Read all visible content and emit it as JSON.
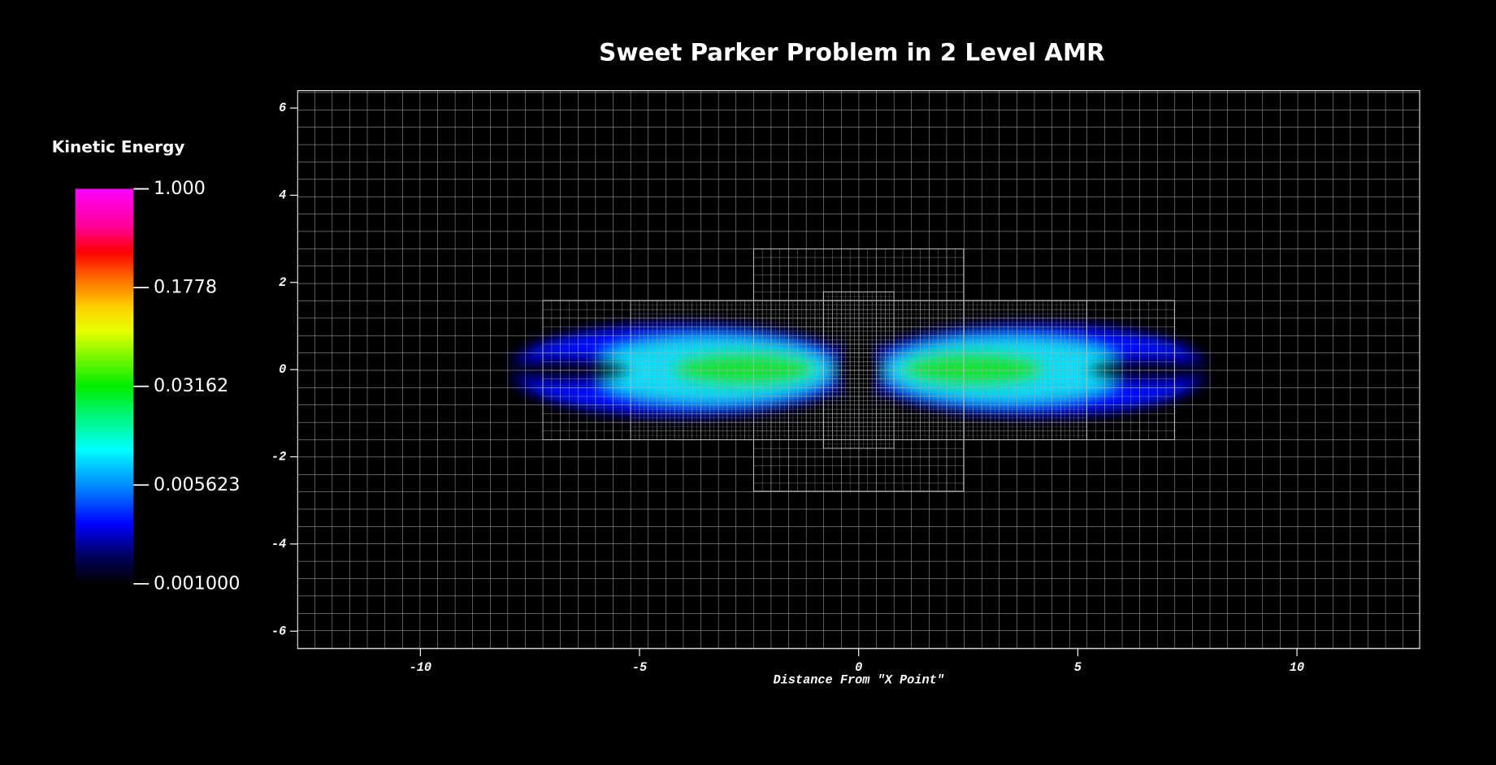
{
  "chart_data": {
    "type": "heatmap",
    "title": "Sweet Parker Problem in 2 Level AMR",
    "x_label": "Distance From \"X Point\"",
    "xlim": [
      -12.8,
      12.8
    ],
    "xticks": [
      -10,
      -5,
      0,
      5,
      10
    ],
    "ylim": [
      -6.4,
      6.4
    ],
    "yticks": [
      -6,
      -4,
      -2,
      0,
      2,
      4,
      6
    ],
    "colorbar": {
      "title": "Kinetic Energy",
      "clim": [
        0.001,
        1
      ],
      "log_scale": true,
      "ticks": [
        {
          "value": 1,
          "label": "1.000"
        },
        {
          "value": 0.1778,
          "label": "0.1778"
        },
        {
          "value": 0.03162,
          "label": "0.03162"
        },
        {
          "value": 0.005623,
          "label": "0.005623"
        },
        {
          "value": 0.001,
          "label": "0.001000"
        }
      ]
    }
  }
}
